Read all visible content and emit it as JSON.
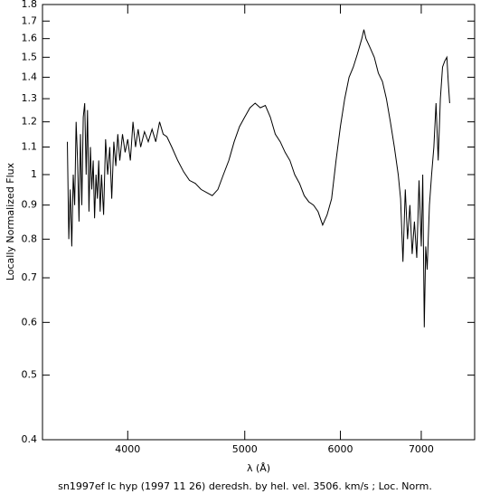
{
  "chart_data": {
    "type": "line",
    "y_label": "Locally Normalized Flux",
    "x_label": "λ (Å)",
    "caption": "sn1997ef Ic hyp (1997 11 26) deredsh. by hel. vel.  3506. km/s ;  Loc. Norm.",
    "xlog": true,
    "ylog": true,
    "color": "#000000",
    "xlim": [
      3400,
      7750
    ],
    "ylim": [
      0.4,
      1.8
    ],
    "xticks": [
      4000,
      5000,
      6000,
      7000
    ],
    "yticks": [
      0.4,
      0.5,
      0.6,
      0.7,
      0.8,
      0.9,
      1,
      1.1,
      1.2,
      1.3,
      1.4,
      1.5,
      1.6,
      1.7,
      1.8
    ],
    "x": [
      3565,
      3575,
      3585,
      3595,
      3605,
      3615,
      3625,
      3635,
      3645,
      3655,
      3665,
      3675,
      3685,
      3695,
      3705,
      3715,
      3725,
      3735,
      3745,
      3755,
      3765,
      3775,
      3785,
      3795,
      3805,
      3820,
      3835,
      3850,
      3865,
      3880,
      3895,
      3910,
      3925,
      3940,
      3960,
      3980,
      4000,
      4020,
      4040,
      4060,
      4080,
      4100,
      4130,
      4160,
      4190,
      4220,
      4250,
      4280,
      4310,
      4350,
      4400,
      4450,
      4500,
      4550,
      4600,
      4650,
      4700,
      4750,
      4800,
      4850,
      4900,
      4950,
      5000,
      5050,
      5100,
      5150,
      5200,
      5250,
      5300,
      5350,
      5400,
      5450,
      5500,
      5550,
      5600,
      5650,
      5700,
      5750,
      5800,
      5850,
      5900,
      5950,
      6000,
      6050,
      6100,
      6150,
      6200,
      6250,
      6275,
      6300,
      6350,
      6400,
      6450,
      6500,
      6550,
      6600,
      6650,
      6700,
      6730,
      6760,
      6790,
      6820,
      6850,
      6880,
      6910,
      6940,
      6970,
      7000,
      7020,
      7040,
      7060,
      7080,
      7110,
      7140,
      7170,
      7200,
      7230,
      7260,
      7290,
      7320,
      7350,
      7370,
      7390
    ],
    "values": [
      1.12,
      0.8,
      0.95,
      0.78,
      1.0,
      0.9,
      1.2,
      1.05,
      0.85,
      1.15,
      0.9,
      1.22,
      1.28,
      1.0,
      1.25,
      0.88,
      1.1,
      0.95,
      1.05,
      0.86,
      1.0,
      0.92,
      1.05,
      0.88,
      1.0,
      0.87,
      1.13,
      1.0,
      1.1,
      0.92,
      1.12,
      1.03,
      1.15,
      1.05,
      1.15,
      1.08,
      1.13,
      1.05,
      1.2,
      1.1,
      1.17,
      1.1,
      1.16,
      1.12,
      1.17,
      1.12,
      1.2,
      1.15,
      1.14,
      1.1,
      1.05,
      1.01,
      0.98,
      0.97,
      0.95,
      0.94,
      0.93,
      0.95,
      1.0,
      1.05,
      1.12,
      1.18,
      1.22,
      1.26,
      1.28,
      1.26,
      1.27,
      1.22,
      1.15,
      1.12,
      1.08,
      1.05,
      1.0,
      0.97,
      0.93,
      0.91,
      0.9,
      0.88,
      0.84,
      0.87,
      0.92,
      1.05,
      1.18,
      1.3,
      1.4,
      1.45,
      1.52,
      1.6,
      1.65,
      1.6,
      1.55,
      1.5,
      1.42,
      1.38,
      1.3,
      1.2,
      1.1,
      1.0,
      0.92,
      0.74,
      0.95,
      0.8,
      0.9,
      0.76,
      0.85,
      0.75,
      0.98,
      0.78,
      1.0,
      0.59,
      0.78,
      0.72,
      0.9,
      1.0,
      1.1,
      1.28,
      1.05,
      1.3,
      1.45,
      1.48,
      1.5,
      1.38,
      1.28
    ]
  }
}
